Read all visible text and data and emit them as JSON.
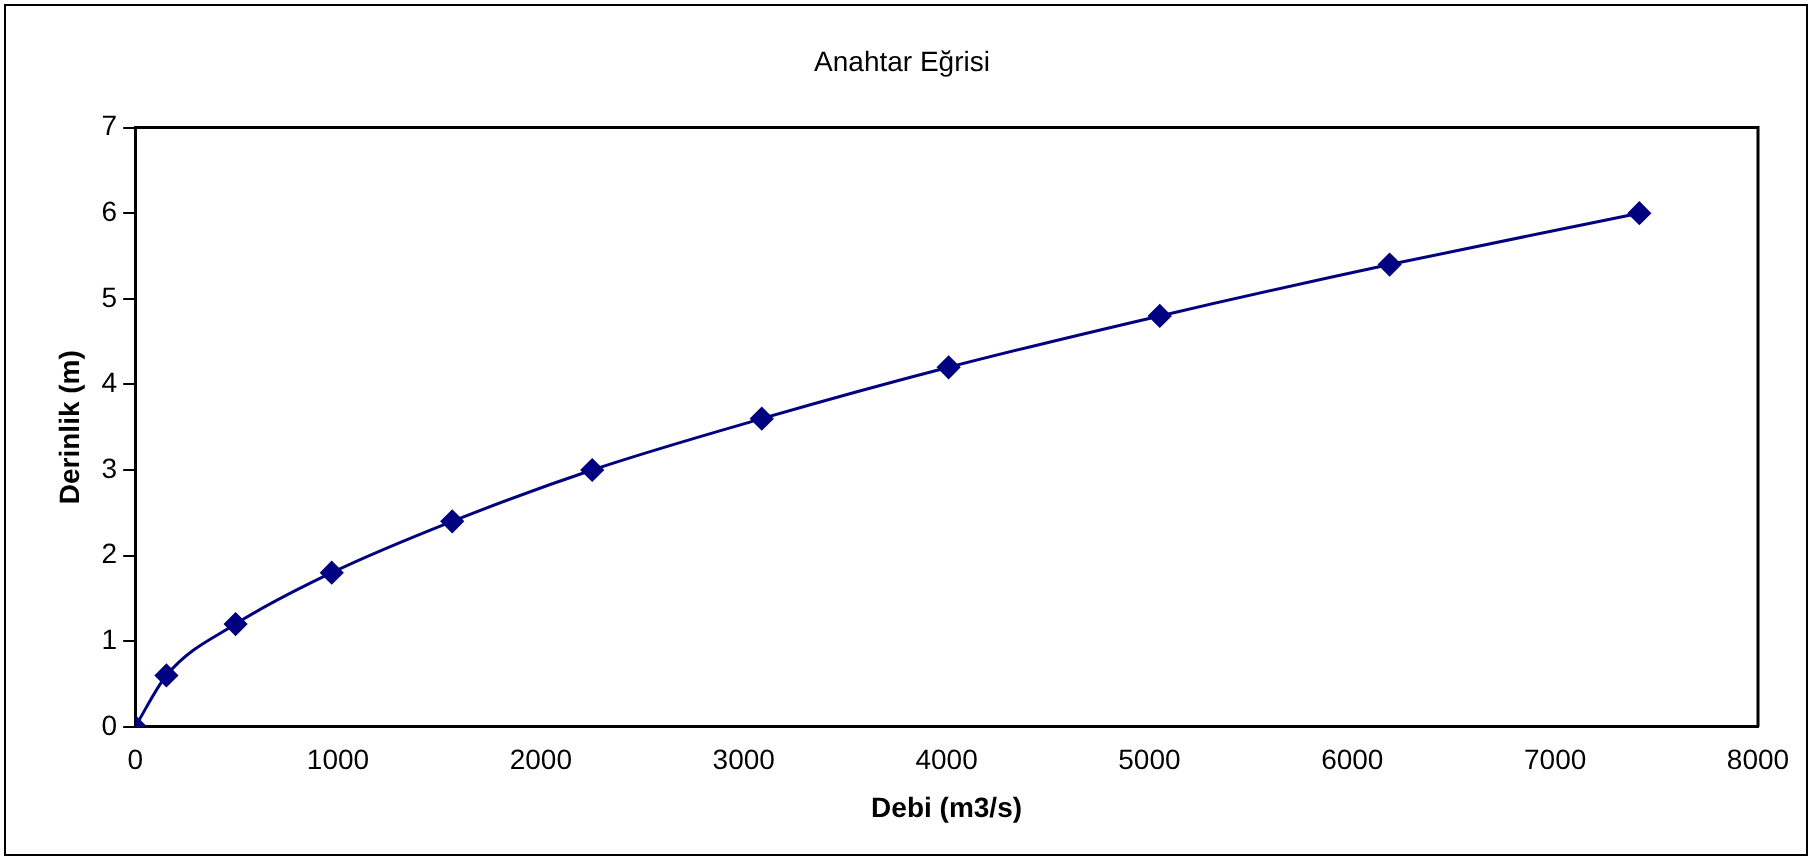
{
  "chart_data": {
    "type": "line",
    "title": "Anahtar Eğrisi",
    "xlabel": "Debi (m3/s)",
    "ylabel": "Derinlik (m)",
    "x": [
      0,
      154,
      495,
      969,
      1563,
      2253,
      3089,
      4010,
      5051,
      6184,
      7415
    ],
    "series": [
      {
        "color": "#000080",
        "values": [
          0,
          0.6,
          1.2,
          1.8,
          2.4,
          3.0,
          3.6,
          4.2,
          4.8,
          5.4,
          6.0
        ]
      }
    ],
    "xlim": [
      0,
      8000
    ],
    "xticks": [
      0,
      1000,
      2000,
      3000,
      4000,
      5000,
      6000,
      7000,
      8000
    ],
    "ylim": [
      0,
      7
    ],
    "yticks": [
      0,
      1,
      2,
      3,
      4,
      5,
      6,
      7
    ],
    "grid": false,
    "legend": false,
    "marker": "diamond",
    "line_style": "solid"
  }
}
